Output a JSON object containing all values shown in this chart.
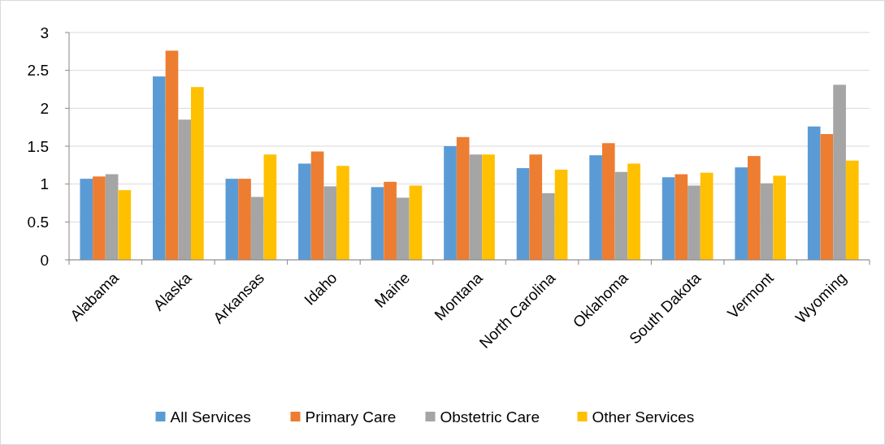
{
  "chart_data": {
    "type": "bar",
    "categories": [
      "Alabama",
      "Alaska",
      "Arkansas",
      "Idaho",
      "Maine",
      "Montana",
      "North Carolina",
      "Oklahoma",
      "South Dakota",
      "Vermont",
      "Wyoming"
    ],
    "series": [
      {
        "name": "All Services",
        "color": "#5b9bd5",
        "values": [
          1.07,
          2.42,
          1.07,
          1.27,
          0.96,
          1.5,
          1.21,
          1.38,
          1.09,
          1.22,
          1.76
        ]
      },
      {
        "name": "Primary Care",
        "color": "#ed7d31",
        "values": [
          1.1,
          2.76,
          1.07,
          1.43,
          1.03,
          1.62,
          1.39,
          1.54,
          1.13,
          1.37,
          1.66
        ]
      },
      {
        "name": "Obstetric Care",
        "color": "#a5a5a5",
        "values": [
          1.13,
          1.85,
          0.83,
          0.97,
          0.82,
          1.39,
          0.88,
          1.16,
          0.98,
          1.01,
          2.31
        ]
      },
      {
        "name": "Other Services",
        "color": "#ffc000",
        "values": [
          0.92,
          2.28,
          1.39,
          1.24,
          0.98,
          1.39,
          1.19,
          1.27,
          1.15,
          1.11,
          1.31
        ]
      }
    ],
    "ylim": [
      0,
      3
    ],
    "yticks": [
      0,
      {
        "value": 0.5,
        "label": "0.5"
      },
      1,
      {
        "value": 1.5,
        "label": "1.5"
      },
      2,
      {
        "value": 2.5,
        "label": "2.5"
      },
      3
    ],
    "grid": "y",
    "legend": "bottom"
  }
}
